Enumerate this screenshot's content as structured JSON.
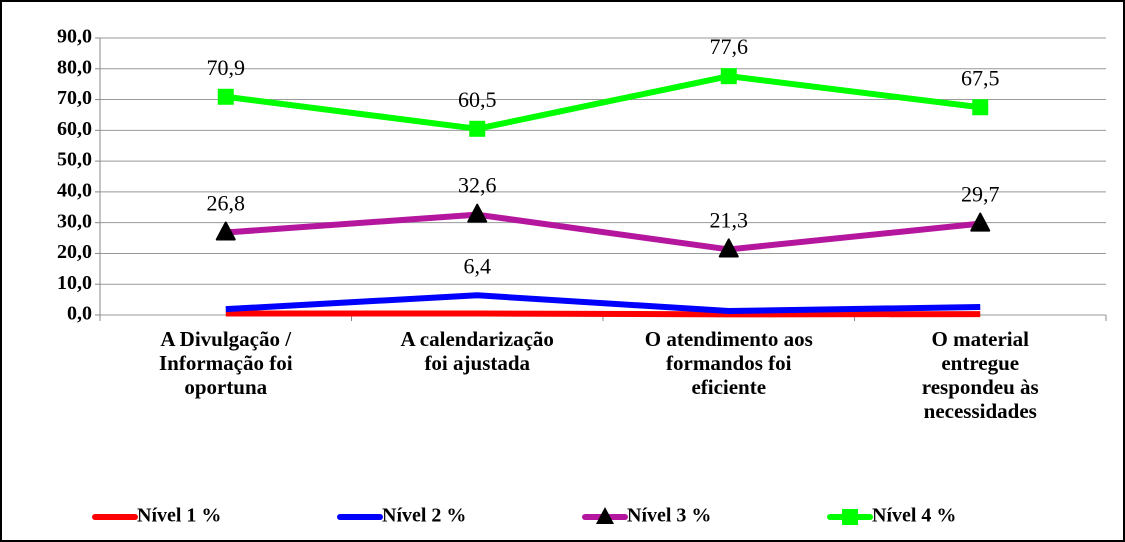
{
  "chart_data": {
    "type": "line",
    "categories": [
      "A Divulgação /\nInformação foi\noportuna",
      "A calendarização\nfoi ajustada",
      "O atendimento aos\nformandos foi\neficiente",
      "O material\nentregue\nrespondeu às\nnecessidades"
    ],
    "series": [
      {
        "name": "Nível 1 %",
        "color": "#ff0000",
        "values": [
          0.5,
          0.5,
          0.2,
          0.3
        ]
      },
      {
        "name": "Nível 2 %",
        "color": "#0000ff",
        "values": [
          1.9,
          6.4,
          1.3,
          2.6
        ],
        "value_labels": [
          null,
          "6,4",
          null,
          null
        ]
      },
      {
        "name": "Nível 3 %",
        "color": "#b5169e",
        "marker": "triangle",
        "marker_color": "#000000",
        "values": [
          26.8,
          32.6,
          21.3,
          29.7
        ],
        "value_labels": [
          "26,8",
          "32,6",
          "21,3",
          "29,7"
        ]
      },
      {
        "name": "Nível 4 %",
        "color": "#00ff00",
        "marker": "square",
        "marker_color": "#00ff00",
        "values": [
          70.9,
          60.5,
          77.6,
          67.5
        ],
        "value_labels": [
          "70,9",
          "60,5",
          "77,6",
          "67,5"
        ]
      }
    ],
    "ylim": [
      0,
      90
    ],
    "yticks": [
      {
        "value": 0,
        "label": "0,0"
      },
      {
        "value": 10,
        "label": "10,0"
      },
      {
        "value": 20,
        "label": "20,0"
      },
      {
        "value": 30,
        "label": "30,0"
      },
      {
        "value": 40,
        "label": "40,0"
      },
      {
        "value": 50,
        "label": "50,0"
      },
      {
        "value": 60,
        "label": "60,0"
      },
      {
        "value": 70,
        "label": "70,0"
      },
      {
        "value": 80,
        "label": "80,0"
      },
      {
        "value": 90,
        "label": "90,0"
      }
    ],
    "grid": true,
    "legend": "bottom"
  }
}
